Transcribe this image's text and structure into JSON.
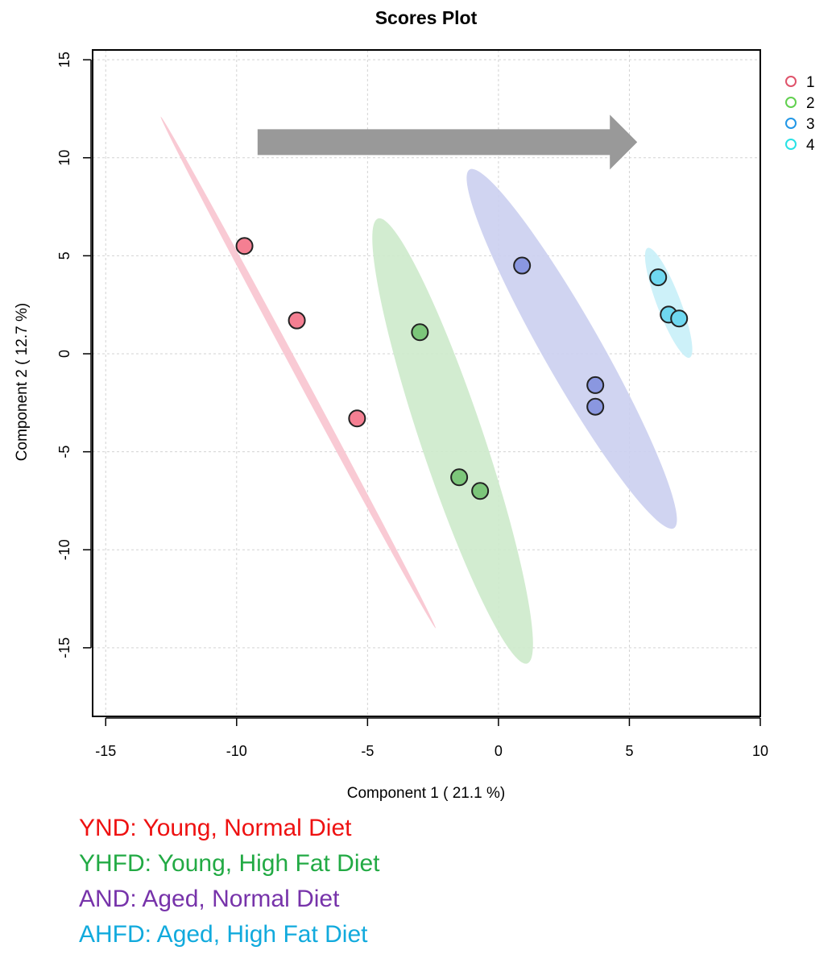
{
  "chart_data": {
    "type": "scatter",
    "title": "Scores Plot",
    "xlabel": "Component 1 ( 21.1 %)",
    "ylabel": "Component 2 ( 12.7 %)",
    "xlim": [
      -15.5,
      10
    ],
    "ylim": [
      -18.5,
      15.5
    ],
    "x_ticks": [
      -15,
      -10,
      -5,
      0,
      5,
      10
    ],
    "y_ticks": [
      -15,
      -10,
      -5,
      0,
      5,
      10,
      15
    ],
    "grid": true,
    "legend_position": "top-right",
    "series": [
      {
        "name": "1",
        "color": "#DF536B",
        "fill": "#F47F92",
        "ellipse_fill": "#F8C4CF",
        "points": [
          [
            -9.7,
            5.5
          ],
          [
            -7.7,
            1.7
          ],
          [
            -5.4,
            -3.3
          ]
        ],
        "ellipse": {
          "center": [
            -7.65,
            -0.95
          ],
          "axis_end": [
            -12.9,
            12.1
          ],
          "minor_halfwidth": 0.15
        }
      },
      {
        "name": "2",
        "color": "#61D04F",
        "fill": "#7CC67A",
        "ellipse_fill": "#CDEACB",
        "points": [
          [
            -3.0,
            1.1
          ],
          [
            -1.5,
            -6.3
          ],
          [
            -0.7,
            -7.0
          ]
        ],
        "ellipse": {
          "center": [
            -1.75,
            -4.45
          ],
          "axis_end": [
            -4.6,
            6.9
          ],
          "minor_halfwidth": 1.2
        }
      },
      {
        "name": "3",
        "color": "#2297E6",
        "fill": "#8A97E0",
        "ellipse_fill": "#CBCFF0",
        "points": [
          [
            0.9,
            4.5
          ],
          [
            3.7,
            -1.6
          ],
          [
            3.7,
            -2.7
          ]
        ],
        "ellipse": {
          "center": [
            2.8,
            0.25
          ],
          "axis_end": [
            -1.1,
            9.4
          ],
          "minor_halfwidth": 1.1
        }
      },
      {
        "name": "4",
        "color": "#28E2E5",
        "fill": "#6FD8F0",
        "ellipse_fill": "#C8F0F8",
        "points": [
          [
            6.1,
            3.9
          ],
          [
            6.5,
            2.0
          ],
          [
            6.9,
            1.8
          ]
        ],
        "ellipse": {
          "center": [
            6.5,
            2.6
          ],
          "axis_end": [
            5.7,
            5.4
          ],
          "minor_halfwidth": 0.45
        }
      }
    ],
    "arrow": {
      "from": [
        -9.2,
        10.8
      ],
      "to": [
        5.3,
        10.8
      ],
      "color": "#999999"
    }
  },
  "captions": [
    {
      "text": "YND: Young, Normal Diet",
      "color": "#EE1111"
    },
    {
      "text": "YHFD: Young, High Fat Diet",
      "color": "#22AA44"
    },
    {
      "text": "AND: Aged, Normal Diet",
      "color": "#7733AA"
    },
    {
      "text": "AHFD: Aged, High Fat Diet",
      "color": "#11AADD"
    }
  ]
}
